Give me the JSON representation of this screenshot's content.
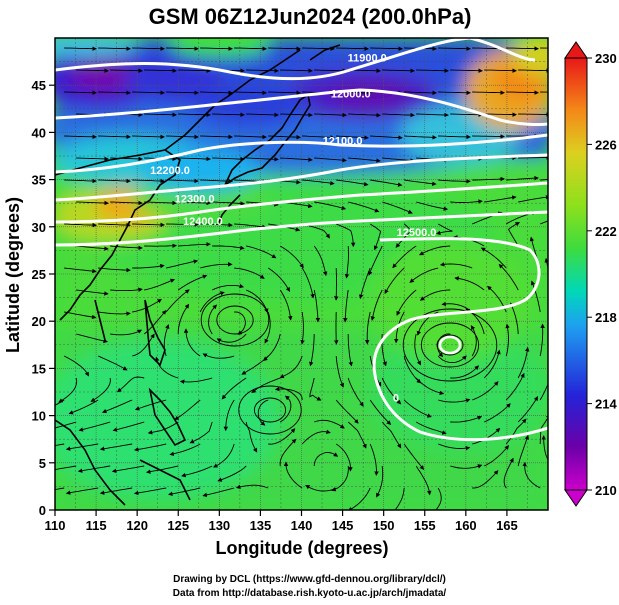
{
  "title": "GSM 06Z12Jun2024 (200.0hPa)",
  "credits": [
    "Drawing by DCL (https://www.gfd-dennou.org/library/dcl/)",
    "Data from http://database.rish.kyoto-u.ac.jp/arch/jmadata/"
  ],
  "chart_data": {
    "type": "heatmap",
    "title": "GSM 06Z12Jun2024 (200.0hPa)",
    "xlabel": "Longitude (degrees)",
    "ylabel": "Latitude  (degrees)",
    "xlim": [
      110,
      170
    ],
    "ylim": [
      0,
      50
    ],
    "x_ticks": [
      110,
      115,
      120,
      125,
      130,
      135,
      140,
      145,
      150,
      155,
      160,
      165
    ],
    "y_ticks": [
      0,
      5,
      10,
      15,
      20,
      25,
      30,
      35,
      40,
      45
    ],
    "grid": true,
    "colorbar": {
      "min": 210,
      "max": 230,
      "ticks": [
        210,
        214,
        218,
        222,
        226,
        230
      ],
      "colors": [
        "#cc00cc",
        "#6a00a8",
        "#2424d8",
        "#1ea0f0",
        "#00d8b8",
        "#3edc3e",
        "#8ee01c",
        "#dcd020",
        "#f48818",
        "#e81818"
      ]
    },
    "contour_labels": [
      {
        "text": "11900.0",
        "lon": 148,
        "lat": 47.5
      },
      {
        "text": "12000.0",
        "lon": 146,
        "lat": 43.7
      },
      {
        "text": "12100.0",
        "lon": 145,
        "lat": 38.7
      },
      {
        "text": "12200.0",
        "lon": 124,
        "lat": 35.6
      },
      {
        "text": "12300.0",
        "lon": 127,
        "lat": 32.6
      },
      {
        "text": "12400.0",
        "lon": 128,
        "lat": 30.2
      },
      {
        "text": "12500.0",
        "lon": 154,
        "lat": 29.0
      },
      {
        "text": "0",
        "lon": 151.5,
        "lat": 11.5
      }
    ]
  }
}
